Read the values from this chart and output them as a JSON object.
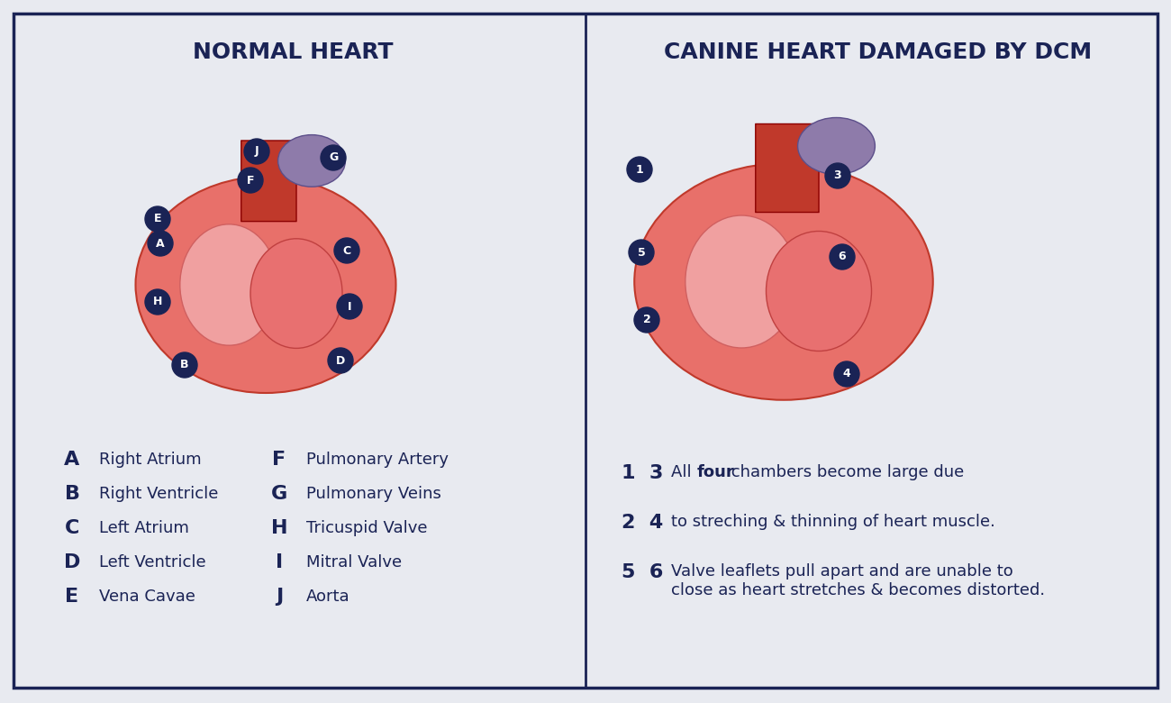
{
  "bg_color": "#e8eaf0",
  "panel_bg": "#e8eaf0",
  "border_color": "#1a2355",
  "divider_color": "#1a2355",
  "title_left": "NORMAL HEART",
  "title_right": "CANINE HEART DAMAGED BY DCM",
  "title_color": "#1a2355",
  "title_fontsize": 18,
  "label_color": "#1a2355",
  "legend_left": [
    [
      "A",
      "Right Atrium"
    ],
    [
      "B",
      "Right Ventricle"
    ],
    [
      "C",
      "Left Atrium"
    ],
    [
      "D",
      "Left Ventricle"
    ],
    [
      "E",
      "Vena Cavae"
    ]
  ],
  "legend_right_labels": [
    [
      "F",
      "Pulmonary Artery"
    ],
    [
      "G",
      "Pulmonary Veins"
    ],
    [
      "H",
      "Tricuspid Valve"
    ],
    [
      "I",
      "Mitral Valve"
    ],
    [
      "J",
      "Aorta"
    ]
  ],
  "notes_right": [
    [
      "1  3",
      "All ",
      "four",
      " chambers become large due"
    ],
    [
      "2  4",
      "to streching & thinning of heart muscle.",
      "",
      ""
    ],
    [
      "5  6",
      "Valve leaflets pull apart and are unable to\nclose as heart stretches & becomes distorted.",
      "",
      ""
    ]
  ],
  "badge_color": "#1a2355",
  "badge_text_color": "#ffffff",
  "heart_left_labels": [
    "E",
    "A",
    "H",
    "B",
    "J",
    "F",
    "G",
    "C",
    "I",
    "D"
  ],
  "heart_right_labels": [
    "1",
    "5",
    "2",
    "3",
    "6",
    "4"
  ],
  "label_fontsize": 13,
  "badge_fontsize": 9
}
